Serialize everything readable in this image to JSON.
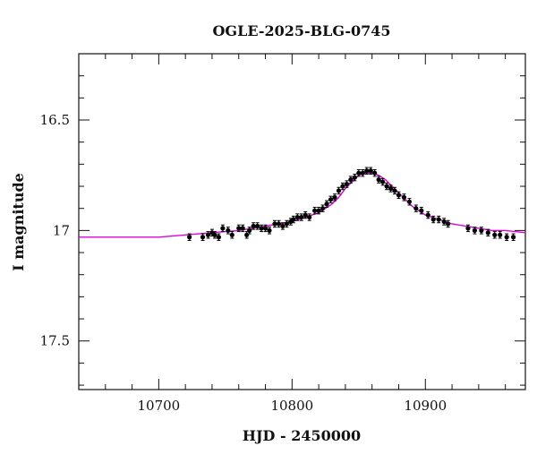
{
  "chart_data": {
    "type": "scatter",
    "title": "OGLE-2025-BLG-0745",
    "xlabel": "HJD - 2450000",
    "ylabel": "I magnitude",
    "xlim": [
      10640,
      10975
    ],
    "ylim": [
      17.72,
      16.2
    ],
    "y_inverted": true,
    "x_ticks": [
      10700,
      10800,
      10900
    ],
    "y_ticks": [
      16.5,
      17,
      17.5
    ],
    "x_tick_labels": [
      "10700",
      "10800",
      "10900"
    ],
    "y_tick_labels": [
      "16.5",
      "17",
      "17.5"
    ],
    "grid": false,
    "legend": "none",
    "series": [
      {
        "kind": "points_with_errorbars",
        "color": "#000000",
        "x": [
          10723,
          10733,
          10737,
          10740,
          10742,
          10745,
          10748,
          10752,
          10755,
          10760,
          10763,
          10766,
          10768,
          10771,
          10774,
          10777,
          10780,
          10783,
          10787,
          10790,
          10793,
          10796,
          10799,
          10801,
          10804,
          10807,
          10810,
          10813,
          10817,
          10820,
          10823,
          10826,
          10829,
          10832,
          10835,
          10838,
          10841,
          10844,
          10847,
          10850,
          10853,
          10856,
          10859,
          10862,
          10865,
          10868,
          10871,
          10874,
          10877,
          10880,
          10884,
          10888,
          10893,
          10897,
          10902,
          10906,
          10910,
          10914,
          10917,
          10932,
          10937,
          10942,
          10947,
          10952,
          10956,
          10961,
          10966
        ],
        "y": [
          17.03,
          17.03,
          17.02,
          17.01,
          17.02,
          17.03,
          16.99,
          17.0,
          17.02,
          16.99,
          16.99,
          17.02,
          17.0,
          16.98,
          16.98,
          16.99,
          16.99,
          17.0,
          16.97,
          16.97,
          16.98,
          16.97,
          16.96,
          16.95,
          16.94,
          16.94,
          16.93,
          16.94,
          16.91,
          16.91,
          16.9,
          16.88,
          16.86,
          16.85,
          16.82,
          16.8,
          16.79,
          16.77,
          16.76,
          16.74,
          16.74,
          16.73,
          16.73,
          16.74,
          16.77,
          16.78,
          16.8,
          16.81,
          16.82,
          16.84,
          16.85,
          16.87,
          16.9,
          16.91,
          16.93,
          16.95,
          16.95,
          16.96,
          16.97,
          16.99,
          17.0,
          17.0,
          17.01,
          17.02,
          17.02,
          17.03,
          17.03
        ],
        "yerr": 0.015
      },
      {
        "kind": "model_curve",
        "color": "#e000e0",
        "x": [
          10640,
          10660,
          10680,
          10700,
          10720,
          10740,
          10760,
          10770,
          10780,
          10790,
          10800,
          10810,
          10820,
          10825,
          10830,
          10835,
          10840,
          10845,
          10850,
          10855,
          10860,
          10865,
          10870,
          10875,
          10880,
          10885,
          10890,
          10895,
          10900,
          10910,
          10920,
          10930,
          10940,
          10950,
          10960,
          10975
        ],
        "y": [
          17.03,
          17.03,
          17.03,
          17.03,
          17.02,
          17.01,
          17.0,
          16.99,
          16.98,
          16.97,
          16.96,
          16.94,
          16.92,
          16.9,
          16.88,
          16.85,
          16.81,
          16.78,
          16.75,
          16.74,
          16.74,
          16.75,
          16.77,
          16.8,
          16.83,
          16.86,
          16.89,
          16.91,
          16.93,
          16.95,
          16.97,
          16.98,
          16.99,
          17.0,
          17.0,
          17.01
        ]
      }
    ]
  }
}
